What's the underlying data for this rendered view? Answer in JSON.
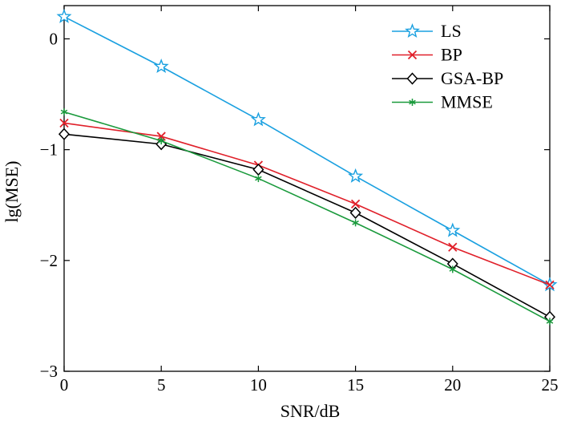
{
  "chart_data": {
    "type": "line",
    "xlabel": "SNR/dB",
    "ylabel": "lg(MSE)",
    "xlim": [
      0,
      25
    ],
    "ylim": [
      -3,
      0.3
    ],
    "x_ticks": [
      0,
      5,
      10,
      15,
      20,
      25
    ],
    "y_ticks": [
      0,
      -1,
      -2,
      -3
    ],
    "x_tick_labels": [
      "0",
      "5",
      "10",
      "15",
      "20",
      "25"
    ],
    "y_tick_labels": [
      "0",
      "−1",
      "−2",
      "−3"
    ],
    "grid": false,
    "legend_position": "top-right",
    "x": [
      0,
      5,
      10,
      15,
      20,
      25
    ],
    "series": [
      {
        "name": "LS",
        "color": "#1aa0e0",
        "marker": "star",
        "values": [
          0.2,
          -0.25,
          -0.73,
          -1.24,
          -1.73,
          -2.22
        ]
      },
      {
        "name": "BP",
        "color": "#e0202a",
        "marker": "x",
        "values": [
          -0.76,
          -0.88,
          -1.14,
          -1.49,
          -1.88,
          -2.22
        ]
      },
      {
        "name": "GSA-BP",
        "color": "#000000",
        "marker": "diamond",
        "values": [
          -0.86,
          -0.95,
          -1.18,
          -1.57,
          -2.03,
          -2.51
        ]
      },
      {
        "name": "MMSE",
        "color": "#1a9a3c",
        "marker": "asterisk",
        "values": [
          -0.66,
          -0.92,
          -1.26,
          -1.66,
          -2.08,
          -2.55
        ]
      }
    ]
  }
}
